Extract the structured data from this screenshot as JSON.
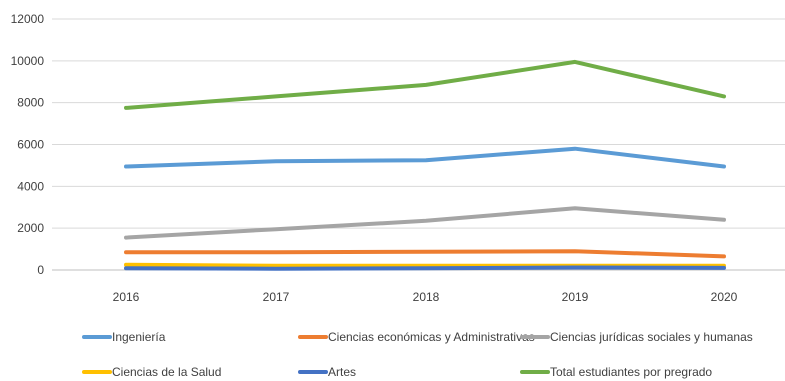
{
  "chart_data": {
    "type": "line",
    "title": "",
    "xlabel": "",
    "ylabel": "",
    "x": [
      "2016",
      "2017",
      "2018",
      "2019",
      "2020"
    ],
    "ylim": [
      0,
      12000
    ],
    "yticks": [
      "0",
      "2000",
      "4000",
      "6000",
      "8000",
      "10000",
      "12000"
    ],
    "grid": true,
    "legend_position": "bottom",
    "series": [
      {
        "name": "Ingeniería",
        "color": "#5B9BD5",
        "values": [
          4950,
          5200,
          5250,
          5800,
          4950
        ]
      },
      {
        "name": "Ciencias económicas y Administrativas",
        "color": "#ED7D31",
        "values": [
          850,
          850,
          870,
          900,
          650
        ]
      },
      {
        "name": "Ciencias jurídicas sociales y humanas",
        "color": "#A5A5A5",
        "values": [
          1550,
          1950,
          2350,
          2950,
          2400
        ]
      },
      {
        "name": "Ciencias de la Salud",
        "color": "#FFC000",
        "values": [
          250,
          200,
          200,
          200,
          200
        ]
      },
      {
        "name": "Artes",
        "color": "#4472C4",
        "values": [
          80,
          60,
          80,
          120,
          100
        ]
      },
      {
        "name": "Total estudiantes por pregrado",
        "color": "#70AD47",
        "values": [
          7750,
          8300,
          8850,
          9950,
          8300
        ]
      }
    ]
  }
}
